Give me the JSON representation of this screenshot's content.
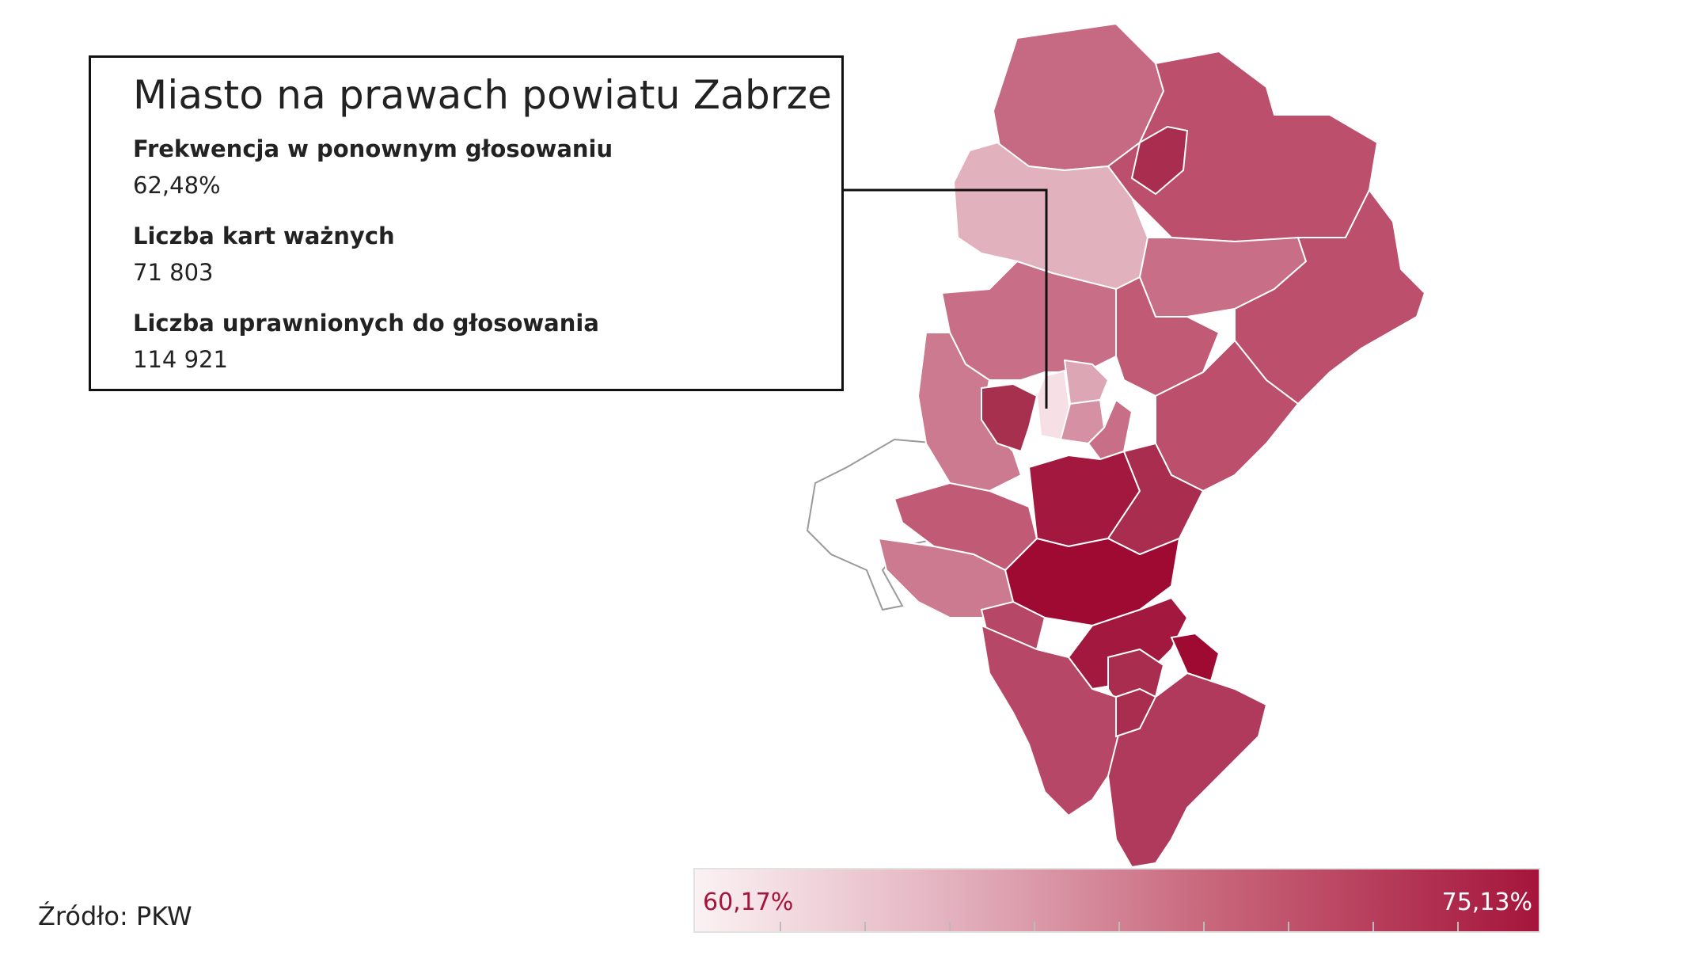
{
  "tooltip": {
    "title": "Miasto na prawach powiatu Zabrze",
    "fields": [
      {
        "label": "Frekwencja w ponownym głosowaniu",
        "value": "62,48%"
      },
      {
        "label": "Liczba kart ważnych",
        "value": "71 803"
      },
      {
        "label": "Liczba uprawnionych do głosowania",
        "value": "114 921"
      }
    ]
  },
  "source": "Źródło: PKW",
  "legend": {
    "min_label": "60,17%",
    "max_label": "75,13%",
    "min_value": 60.17,
    "max_value": 75.13,
    "color_min": "#fbf2f4",
    "color_max": "#a5153b",
    "tick_count": 9
  },
  "map": {
    "highlighted_region": "Zabrze",
    "highlighted_turnout": 62.48,
    "stroke_color": "#ffffff",
    "neighbor_outline_color": "#9a9a9a"
  }
}
